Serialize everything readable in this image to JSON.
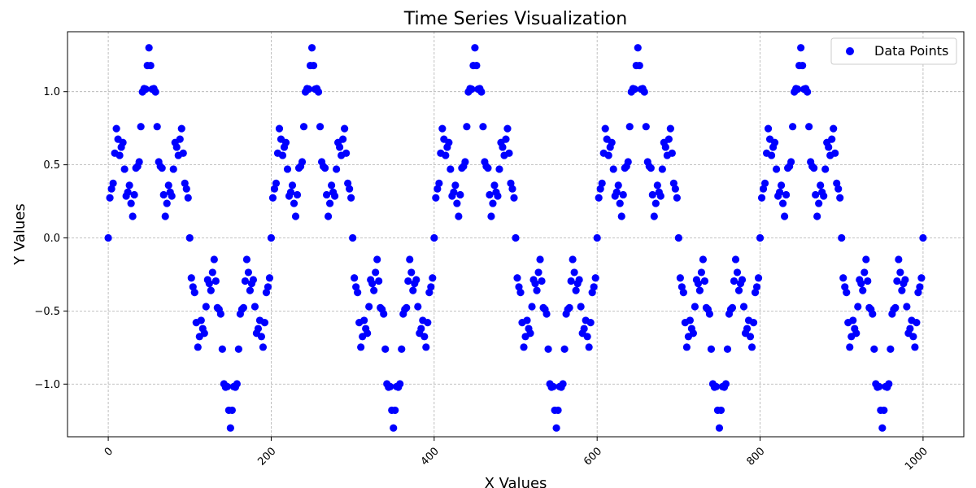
{
  "chart_data": {
    "type": "scatter",
    "title": "Time Series Visualization",
    "xlabel": "X Values",
    "ylabel": "Y Values",
    "xlim": [
      -50,
      1050
    ],
    "ylim": [
      -1.36,
      1.41
    ],
    "xticks": [
      0,
      200,
      400,
      600,
      800,
      1000
    ],
    "xtick_labels": [
      "0",
      "200",
      "400",
      "600",
      "800",
      "1000"
    ],
    "yticks": [
      -1.0,
      -0.5,
      0.0,
      0.5,
      1.0
    ],
    "ytick_labels": [
      "−1.0",
      "−0.5",
      "0.0",
      "0.5",
      "1.0"
    ],
    "grid": true,
    "legend_position": "top-right",
    "series": [
      {
        "name": "Data Points",
        "color": "#0000ff",
        "marker": "circle",
        "x_start": 0,
        "x_end": 1000,
        "x_step": 2,
        "model": {
          "description": "y ~ 0.8*sin(2*pi*x/200) + 0.4*sin(2*pi*x/40) + 0.1*sin(2*pi*x/8), sampled every 2 units from 0 to 1000",
          "components": [
            {
              "amplitude": 0.8,
              "period": 200
            },
            {
              "amplitude": 0.4,
              "period": 40
            },
            {
              "amplitude": 0.1,
              "period": 8
            }
          ]
        }
      }
    ]
  }
}
